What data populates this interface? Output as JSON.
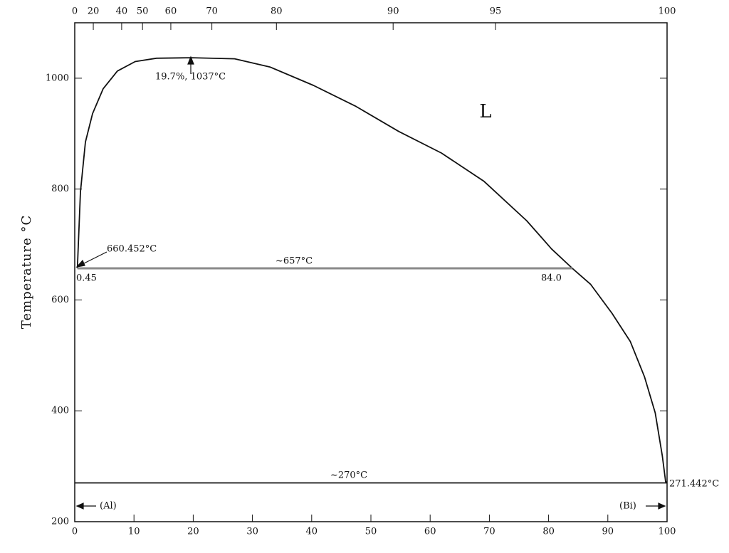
{
  "chart_data": {
    "type": "line",
    "ylabel": "Temperature °C",
    "xlim": [
      0,
      100
    ],
    "ylim": [
      200,
      1100
    ],
    "xticks": [
      0,
      10,
      20,
      30,
      40,
      50,
      60,
      70,
      80,
      90,
      100
    ],
    "yticks": [
      200,
      400,
      600,
      800,
      1000
    ],
    "x2ticks": [
      0,
      {
        "value": 3.13,
        "label": "20"
      },
      {
        "value": 7.92,
        "label": "40"
      },
      {
        "value": 11.44,
        "label": "50"
      },
      {
        "value": 16.22,
        "label": "60"
      },
      {
        "value": 23.15,
        "label": "70"
      },
      {
        "value": 34.05,
        "label": "80"
      },
      {
        "value": 53.75,
        "label": "90"
      },
      {
        "value": 71.04,
        "label": "95"
      },
      100
    ],
    "series": [
      {
        "color": "#111111",
        "x": [
          0.45,
          0.96,
          1.8,
          3.0,
          4.8,
          7.2,
          10.2,
          13.8,
          19.7,
          27,
          33,
          40.3,
          47.5,
          54.7,
          61.9,
          69.1,
          76.3,
          80.5,
          84.0,
          87.1,
          90.7,
          93.8,
          96.2,
          98,
          99.2,
          99.76,
          100
        ],
        "values": [
          657,
          795,
          885,
          936,
          981,
          1013,
          1030,
          1036,
          1037,
          1035,
          1020,
          987,
          949,
          904,
          865,
          814,
          743,
          692,
          657,
          628,
          576,
          525,
          461,
          396,
          319,
          272,
          271.442
        ]
      },
      {
        "color": "#8a8a8a",
        "x": [
          0.45,
          84.0
        ],
        "values": [
          657,
          657
        ]
      },
      {
        "color": "#111111",
        "x": [
          0,
          100
        ],
        "values": [
          270,
          270
        ]
      }
    ],
    "annotations": [
      "19.7%, 1037°C",
      "660.452°C",
      "~657°C",
      "0.45",
      "84.0",
      "L",
      "~270°C",
      "271.442°C",
      "(Al)",
      "(Bi)"
    ]
  }
}
